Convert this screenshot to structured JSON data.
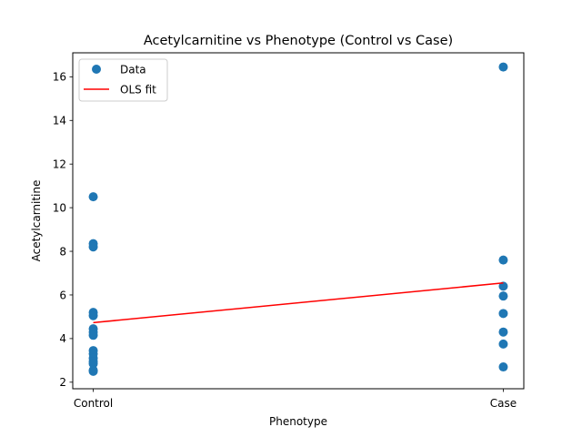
{
  "chart_data": {
    "type": "scatter",
    "title": "Acetylcarnitine vs Phenotype (Control vs Case)",
    "xlabel": "Phenotype",
    "ylabel": "Acetylcarnitine",
    "categories": [
      "Control",
      "Case"
    ],
    "xlim": [
      -0.05,
      1.05
    ],
    "ylim": [
      1.7,
      17.1
    ],
    "yticks": [
      2,
      4,
      6,
      8,
      10,
      12,
      14,
      16
    ],
    "grid": false,
    "legend_position": "top-left",
    "series": [
      {
        "name": "Data",
        "kind": "scatter",
        "color": "#1f77b4",
        "points": [
          {
            "x": 0,
            "y": 10.5
          },
          {
            "x": 0,
            "y": 8.35
          },
          {
            "x": 0,
            "y": 8.2
          },
          {
            "x": 0,
            "y": 5.2
          },
          {
            "x": 0,
            "y": 5.05
          },
          {
            "x": 0,
            "y": 4.45
          },
          {
            "x": 0,
            "y": 4.3
          },
          {
            "x": 0,
            "y": 4.15
          },
          {
            "x": 0,
            "y": 3.45
          },
          {
            "x": 0,
            "y": 3.3
          },
          {
            "x": 0,
            "y": 3.1
          },
          {
            "x": 0,
            "y": 2.95
          },
          {
            "x": 0,
            "y": 2.85
          },
          {
            "x": 0,
            "y": 2.55
          },
          {
            "x": 0,
            "y": 2.5
          },
          {
            "x": 1,
            "y": 16.45
          },
          {
            "x": 1,
            "y": 7.6
          },
          {
            "x": 1,
            "y": 6.4
          },
          {
            "x": 1,
            "y": 5.95
          },
          {
            "x": 1,
            "y": 5.15
          },
          {
            "x": 1,
            "y": 4.3
          },
          {
            "x": 1,
            "y": 3.75
          },
          {
            "x": 1,
            "y": 2.7
          }
        ]
      },
      {
        "name": "OLS fit",
        "kind": "line",
        "color": "#ff0000",
        "points": [
          {
            "x": 0,
            "y": 4.73
          },
          {
            "x": 1,
            "y": 6.55
          }
        ]
      }
    ]
  }
}
